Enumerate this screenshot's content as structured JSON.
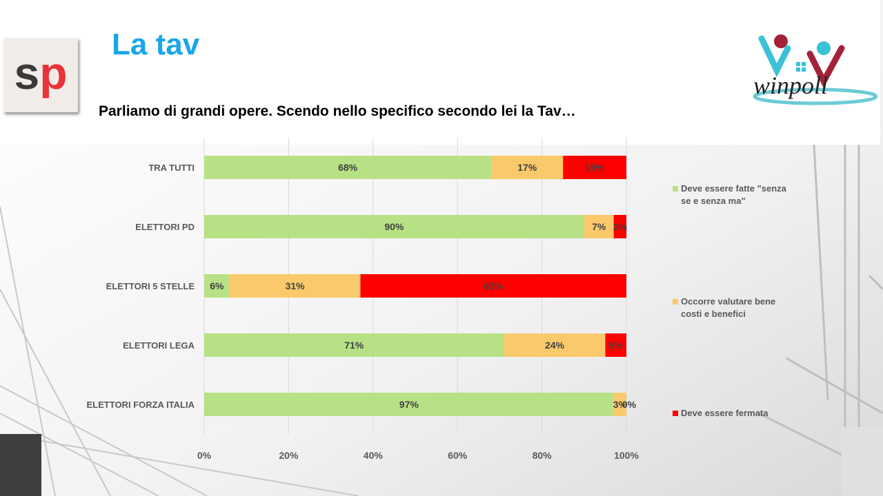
{
  "slide": {
    "title": "La tav",
    "question": "Parliamo di grandi opere. Scendo nello specifico secondo lei la Tav…"
  },
  "logos": {
    "left_logo_text": "sp",
    "right_logo_text": "winpoll"
  },
  "colors": {
    "title": "#1aa6e8",
    "sp_s": "#3a3a3a",
    "sp_p": "#e8333b",
    "series_green": "#b8e186",
    "series_orange": "#fac96b",
    "series_red": "#ff0000"
  },
  "chart_data": {
    "type": "bar",
    "orientation": "horizontal",
    "stacked": true,
    "categories": [
      "TRA TUTTI",
      "ELETTORI PD",
      "ELETTORI 5 STELLE",
      "ELETTORI LEGA",
      "ELETTORI FORZA ITALIA"
    ],
    "series": [
      {
        "name": "Deve essere fatte \"senza se e senza ma\"",
        "values": [
          68,
          90,
          6,
          71,
          97
        ],
        "labels": [
          "68%",
          "90%",
          "6%",
          "71%",
          "97%"
        ],
        "color": "#b8e186"
      },
      {
        "name": "Occorre valutare bene costi e benefici",
        "values": [
          17,
          7,
          31,
          24,
          3
        ],
        "labels": [
          "17%",
          "7%",
          "31%",
          "24%",
          "3%"
        ],
        "color": "#fac96b"
      },
      {
        "name": "Deve essere fermata",
        "values": [
          15,
          3,
          63,
          5,
          0
        ],
        "labels": [
          "15%",
          "3%",
          "63%",
          "5%",
          "0%"
        ],
        "color": "#ff0000"
      }
    ],
    "xlim": [
      0,
      100
    ],
    "x_ticks": [
      "0%",
      "20%",
      "40%",
      "60%",
      "80%",
      "100%"
    ],
    "grid": true,
    "legend_position": "right",
    "legend_lines": [
      [
        "Deve essere fatte \"senza",
        "se e senza ma\""
      ],
      [
        "Occorre valutare bene",
        "costi e benefici"
      ],
      [
        "Deve essere fermata"
      ]
    ]
  }
}
